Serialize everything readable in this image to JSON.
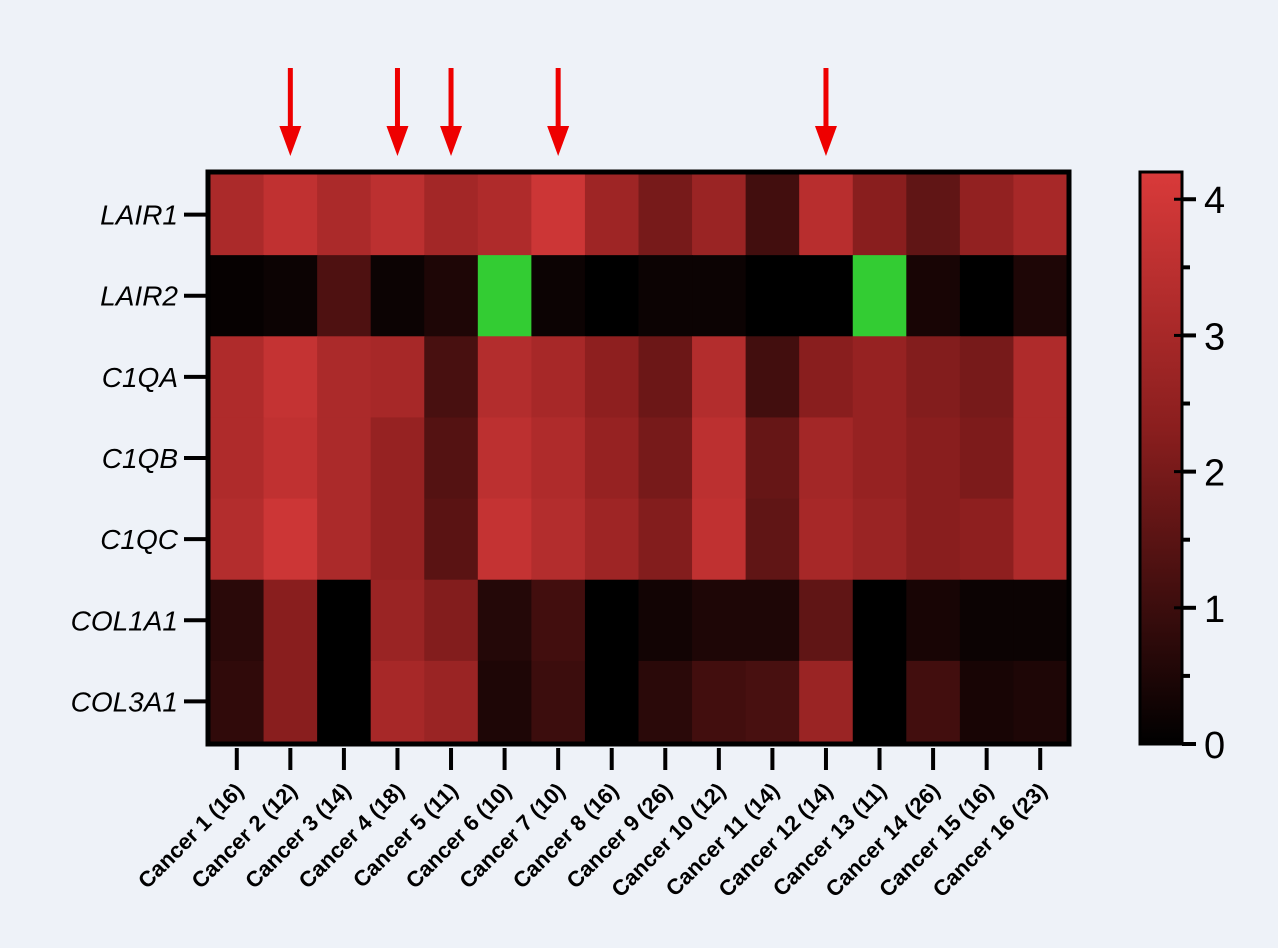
{
  "chart_data": {
    "type": "heatmap",
    "rows": [
      "LAIR1",
      "LAIR2",
      "C1QA",
      "C1QB",
      "C1QC",
      "COL1A1",
      "COL3A1"
    ],
    "columns": [
      "Cancer 1 (16)",
      "Cancer 2 (12)",
      "Cancer 3 (14)",
      "Cancer 4 (18)",
      "Cancer 5 (11)",
      "Cancer 6 (10)",
      "Cancer 7 (10)",
      "Cancer 8 (16)",
      "Cancer 9 (26)",
      "Cancer 10 (12)",
      "Cancer 11 (14)",
      "Cancer 12 (14)",
      "Cancer 13 (11)",
      "Cancer 14 (26)",
      "Cancer 15 (16)",
      "Cancer 16 (23)"
    ],
    "values": [
      [
        3.1,
        3.6,
        3.1,
        3.5,
        2.9,
        3.2,
        3.9,
        2.8,
        2.0,
        2.7,
        1.1,
        3.4,
        2.3,
        1.6,
        2.5,
        3.0
      ],
      [
        0.1,
        0.2,
        1.3,
        0.2,
        0.5,
        null,
        0.2,
        0.0,
        0.2,
        0.2,
        0.0,
        0.0,
        null,
        0.4,
        0.0,
        0.5
      ],
      [
        3.2,
        3.7,
        3.1,
        3.0,
        1.2,
        3.3,
        3.0,
        2.4,
        1.8,
        3.3,
        1.1,
        2.3,
        2.6,
        2.2,
        2.0,
        3.2
      ],
      [
        3.2,
        3.6,
        3.1,
        2.6,
        1.4,
        3.5,
        3.2,
        2.6,
        2.0,
        3.5,
        1.7,
        2.9,
        2.6,
        2.3,
        2.1,
        3.2
      ],
      [
        3.3,
        3.9,
        3.1,
        2.6,
        1.5,
        3.7,
        3.3,
        2.8,
        2.2,
        3.6,
        1.6,
        3.0,
        2.7,
        2.3,
        2.4,
        3.2
      ],
      [
        0.7,
        2.3,
        0.0,
        2.7,
        2.2,
        0.6,
        1.1,
        0.0,
        0.3,
        0.5,
        0.5,
        1.6,
        0.0,
        0.4,
        0.2,
        0.2
      ],
      [
        0.8,
        2.3,
        0.0,
        3.0,
        2.7,
        0.5,
        1.0,
        0.0,
        0.7,
        1.1,
        1.2,
        2.7,
        0.0,
        1.1,
        0.4,
        0.5
      ]
    ],
    "special_color": "#33cc33",
    "colorscale": {
      "min": 0,
      "max": 4.2,
      "low": "#000000",
      "high": "#d93a3a"
    },
    "colorbar_ticks": [
      0,
      1,
      2,
      3,
      4
    ],
    "arrow_columns": [
      1,
      3,
      4,
      6,
      11
    ],
    "arrow_color": "#ee0000"
  }
}
